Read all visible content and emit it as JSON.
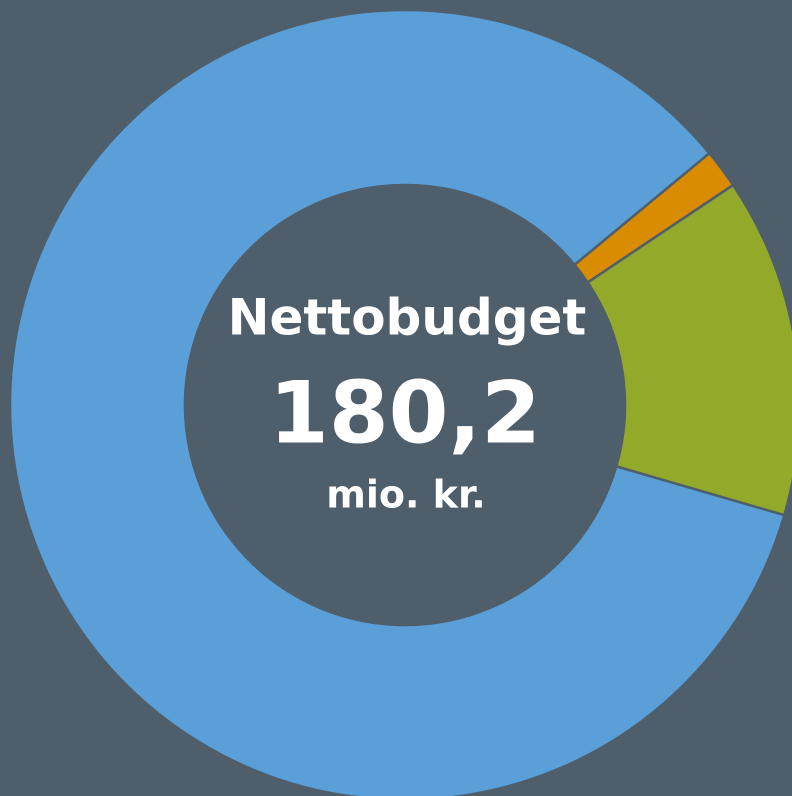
{
  "chart_data": {
    "type": "donut",
    "values": [
      1.6,
      13.9,
      84.5
    ],
    "colors": [
      "#d98c00",
      "#93a92a",
      "#5a9fd8"
    ],
    "center_label": {
      "title": "Nettobudget",
      "value": "180,2",
      "unit": "mio. kr."
    }
  }
}
